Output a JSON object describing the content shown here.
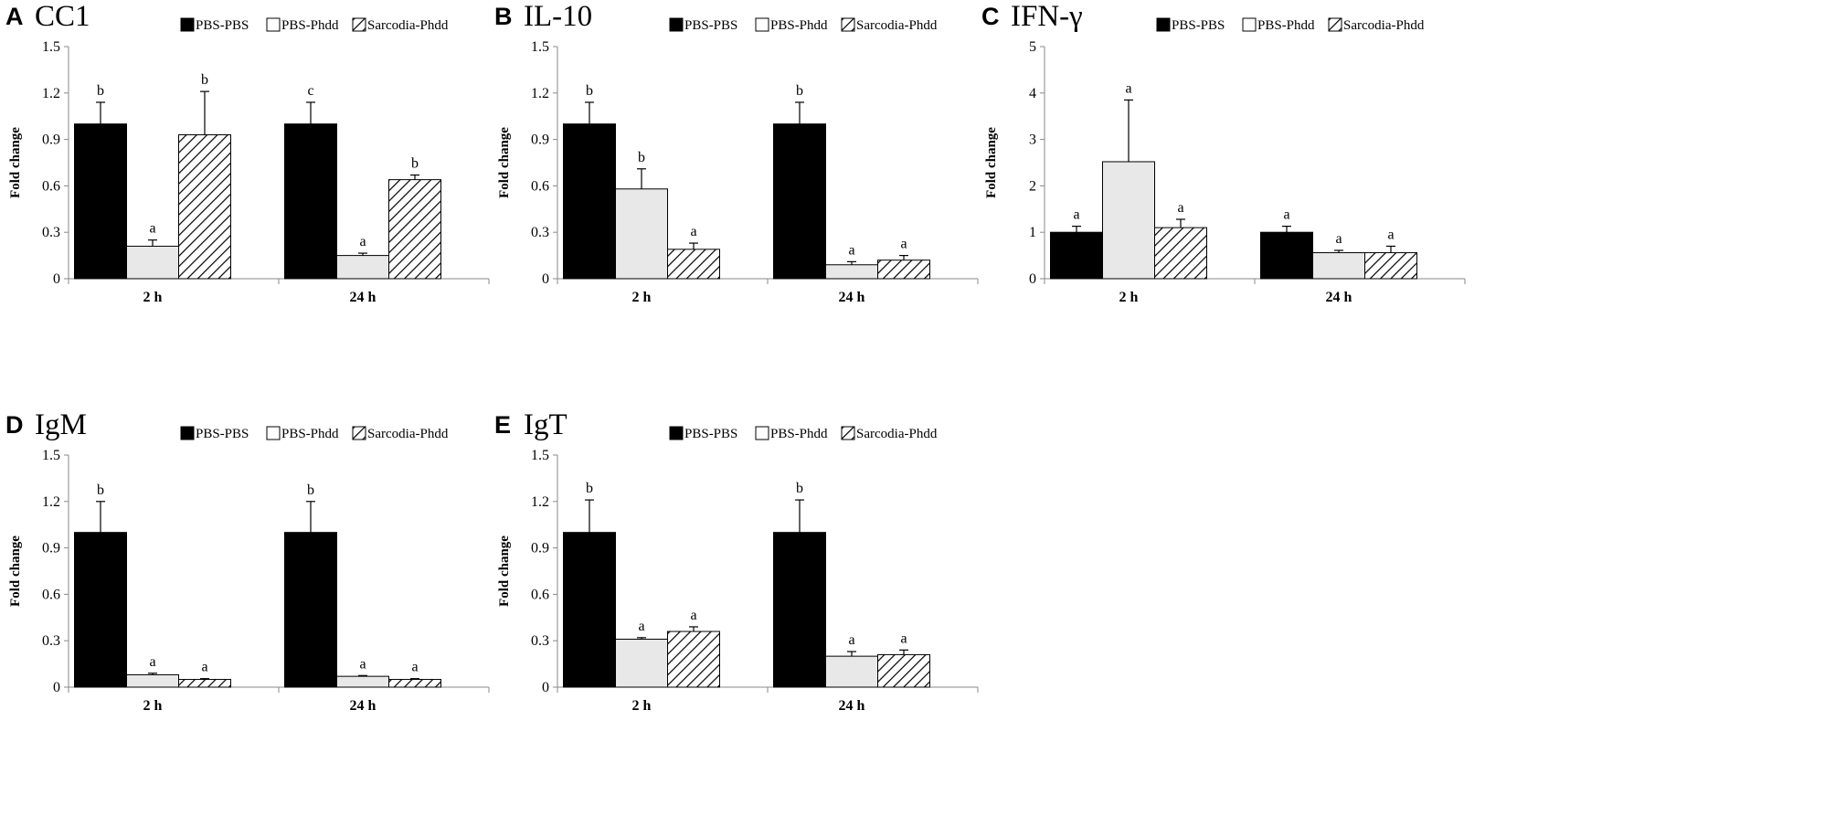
{
  "figure": {
    "colors": {
      "PBS-PBS": "#000000",
      "PBS-Phdd": "#e8e8e8",
      "Sarcodia-Phdd": "hatch"
    },
    "legend_order": [
      "PBS-PBS",
      "PBS-Phdd",
      "Sarcodia-Phdd"
    ]
  },
  "chart_data": [
    {
      "panel": "A",
      "title": "CC1",
      "type": "bar",
      "categories": [
        "2 h",
        "24 h"
      ],
      "ylabel": "Fold change",
      "ylim": [
        0,
        1.5
      ],
      "yticks": [
        "0",
        "0.3",
        "0.6",
        "0.9",
        "1.2",
        "1.5"
      ],
      "series": [
        {
          "name": "PBS-PBS",
          "values": [
            1.0,
            1.0
          ],
          "errors": [
            0.14,
            0.14
          ],
          "letters": [
            "b",
            "c"
          ]
        },
        {
          "name": "PBS-Phdd",
          "values": [
            0.21,
            0.15
          ],
          "errors": [
            0.04,
            0.015
          ],
          "letters": [
            "a",
            "a"
          ]
        },
        {
          "name": "Sarcodia-Phdd",
          "values": [
            0.93,
            0.64
          ],
          "errors": [
            0.28,
            0.03
          ],
          "letters": [
            "b",
            "b"
          ]
        }
      ]
    },
    {
      "panel": "B",
      "title": "IL-10",
      "type": "bar",
      "categories": [
        "2 h",
        "24 h"
      ],
      "ylabel": "Fold change",
      "ylim": [
        0,
        1.5
      ],
      "yticks": [
        "0",
        "0.3",
        "0.6",
        "0.9",
        "1.2",
        "1.5"
      ],
      "series": [
        {
          "name": "PBS-PBS",
          "values": [
            1.0,
            1.0
          ],
          "errors": [
            0.14,
            0.14
          ],
          "letters": [
            "b",
            "b"
          ]
        },
        {
          "name": "PBS-Phdd",
          "values": [
            0.58,
            0.09
          ],
          "errors": [
            0.13,
            0.02
          ],
          "letters": [
            "b",
            "a"
          ]
        },
        {
          "name": "Sarcodia-Phdd",
          "values": [
            0.19,
            0.12
          ],
          "errors": [
            0.04,
            0.03
          ],
          "letters": [
            "a",
            "a"
          ]
        }
      ]
    },
    {
      "panel": "C",
      "title": "IFN-γ",
      "type": "bar",
      "categories": [
        "2 h",
        "24 h"
      ],
      "ylabel": "Fold change",
      "ylim": [
        0,
        5
      ],
      "yticks": [
        "0",
        "1",
        "2",
        "3",
        "4",
        "5"
      ],
      "series": [
        {
          "name": "PBS-PBS",
          "values": [
            1.0,
            1.0
          ],
          "errors": [
            0.13,
            0.13
          ],
          "letters": [
            "a",
            "a"
          ]
        },
        {
          "name": "PBS-Phdd",
          "values": [
            2.52,
            0.56
          ],
          "errors": [
            1.33,
            0.05
          ],
          "letters": [
            "a",
            "a"
          ]
        },
        {
          "name": "Sarcodia-Phdd",
          "values": [
            1.1,
            0.56
          ],
          "errors": [
            0.18,
            0.14
          ],
          "letters": [
            "a",
            "a"
          ]
        }
      ]
    },
    {
      "panel": "D",
      "title": "IgM",
      "type": "bar",
      "categories": [
        "2 h",
        "24 h"
      ],
      "ylabel": "Fold change",
      "ylim": [
        0,
        1.5
      ],
      "yticks": [
        "0",
        "0.3",
        "0.6",
        "0.9",
        "1.2",
        "1.5"
      ],
      "series": [
        {
          "name": "PBS-PBS",
          "values": [
            1.0,
            1.0
          ],
          "errors": [
            0.2,
            0.2
          ],
          "letters": [
            "b",
            "b"
          ]
        },
        {
          "name": "PBS-Phdd",
          "values": [
            0.08,
            0.07
          ],
          "errors": [
            0.01,
            0.005
          ],
          "letters": [
            "a",
            "a"
          ]
        },
        {
          "name": "Sarcodia-Phdd",
          "values": [
            0.05,
            0.05
          ],
          "errors": [
            0.005,
            0.005
          ],
          "letters": [
            "a",
            "a"
          ]
        }
      ]
    },
    {
      "panel": "E",
      "title": "IgT",
      "type": "bar",
      "categories": [
        "2 h",
        "24 h"
      ],
      "ylabel": "Fold change",
      "ylim": [
        0,
        1.5
      ],
      "yticks": [
        "0",
        "0.3",
        "0.6",
        "0.9",
        "1.2",
        "1.5"
      ],
      "series": [
        {
          "name": "PBS-PBS",
          "values": [
            1.0,
            1.0
          ],
          "errors": [
            0.21,
            0.21
          ],
          "letters": [
            "b",
            "b"
          ]
        },
        {
          "name": "PBS-Phdd",
          "values": [
            0.31,
            0.2
          ],
          "errors": [
            0.01,
            0.03
          ],
          "letters": [
            "a",
            "a"
          ]
        },
        {
          "name": "Sarcodia-Phdd",
          "values": [
            0.36,
            0.21
          ],
          "errors": [
            0.03,
            0.03
          ],
          "letters": [
            "a",
            "a"
          ]
        }
      ]
    }
  ]
}
